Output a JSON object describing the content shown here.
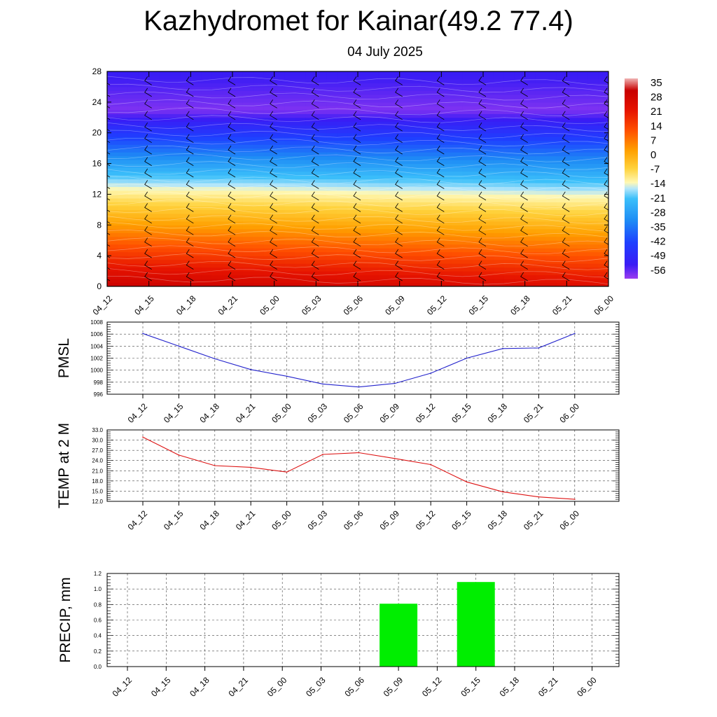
{
  "title": "Kazhydromet for Kainar(49.2 77.4)",
  "subtitle": "04 July 2025",
  "time_labels": [
    "04_12",
    "04_15",
    "04_18",
    "04_21",
    "05_00",
    "05_03",
    "05_06",
    "05_09",
    "05_12",
    "05_15",
    "05_18",
    "05_21",
    "06_00"
  ],
  "chart_data": [
    {
      "type": "heatmap",
      "name": "temperature cross-section",
      "x": [
        "04_12",
        "04_15",
        "04_18",
        "04_21",
        "05_00",
        "05_03",
        "05_06",
        "05_09",
        "05_12",
        "05_15",
        "05_18",
        "05_21",
        "06_00"
      ],
      "yticks": [
        "0",
        "4",
        "8",
        "12",
        "16",
        "20",
        "24",
        "28"
      ],
      "ylim": [
        0,
        28
      ],
      "colorbar": {
        "labels": [
          "35",
          "28",
          "21",
          "14",
          "7",
          "0",
          "-7",
          "-14",
          "-21",
          "-28",
          "-35",
          "-42",
          "-49",
          "-56"
        ],
        "range": [
          -60,
          38
        ]
      },
      "zero_level_height": [
        13.0,
        12.9,
        12.8,
        12.8,
        12.7,
        12.6,
        12.5,
        12.4,
        12.3,
        12.2,
        12.1,
        12.0,
        12.0
      ],
      "wind_barbs": true
    },
    {
      "type": "line",
      "ylabel": "PMSL",
      "x": [
        "04_12",
        "04_15",
        "04_18",
        "04_21",
        "05_00",
        "05_03",
        "05_06",
        "05_09",
        "05_12",
        "05_15",
        "05_18",
        "05_21",
        "06_00"
      ],
      "values": [
        1006.1,
        1004.0,
        1001.9,
        1000.1,
        999.0,
        997.7,
        997.2,
        997.8,
        999.5,
        1002.0,
        1003.6,
        1003.7,
        1006.1
      ],
      "ylim": [
        996,
        1008
      ],
      "yticks": [
        "996",
        "998",
        "1000",
        "1002",
        "1004",
        "1006",
        "1008"
      ],
      "line_color": "#2222cc",
      "grid": true
    },
    {
      "type": "line",
      "ylabel": "TEMP at 2 M",
      "x": [
        "04_12",
        "04_15",
        "04_18",
        "04_21",
        "05_00",
        "05_03",
        "05_06",
        "05_09",
        "05_12",
        "05_15",
        "05_18",
        "05_21",
        "06_00"
      ],
      "values": [
        30.9,
        25.6,
        22.5,
        22.0,
        20.6,
        25.8,
        26.3,
        24.6,
        22.8,
        17.7,
        14.8,
        13.3,
        12.6
      ],
      "ylim": [
        12.0,
        33.0
      ],
      "yticks": [
        "12.0",
        "15.0",
        "18.0",
        "21.0",
        "24.0",
        "27.0",
        "30.0",
        "33.0"
      ],
      "line_color": "#dd1111",
      "grid": true
    },
    {
      "type": "bar",
      "ylabel": "PRECIP, mm",
      "categories": [
        "04_12",
        "04_15",
        "04_18",
        "04_21",
        "05_00",
        "05_03",
        "05_06",
        "05_09",
        "05_12",
        "05_15",
        "05_18",
        "05_21",
        "06_00"
      ],
      "values": [
        0,
        0,
        0,
        0,
        0,
        0,
        0,
        0.81,
        0,
        1.09,
        0,
        0,
        0
      ],
      "ylim": [
        0.0,
        1.2
      ],
      "yticks": [
        "0.0",
        "0.2",
        "0.4",
        "0.6",
        "0.8",
        "1.0",
        "1.2"
      ],
      "bar_color": "#00ee00",
      "grid": true
    }
  ]
}
